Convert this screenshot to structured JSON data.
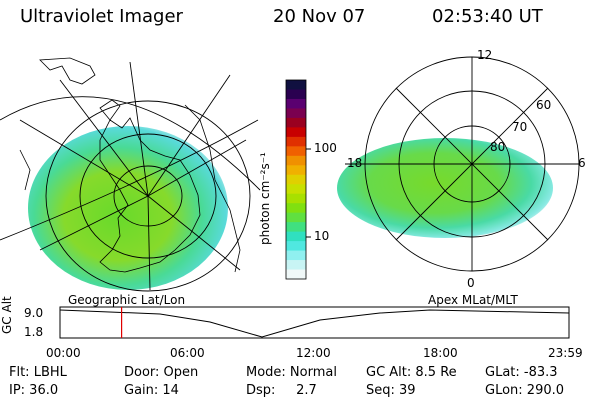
{
  "header": {
    "instrument": "Ultraviolet Imager",
    "date": "20 Nov 07",
    "time": "02:53:40 UT"
  },
  "colorbar": {
    "label": "photon cm⁻²s⁻¹",
    "ticks": [
      "100",
      "10"
    ],
    "colors": [
      "#101040",
      "#2a0050",
      "#5a0070",
      "#7a0050",
      "#9a0020",
      "#c80000",
      "#e03000",
      "#f06000",
      "#f09000",
      "#f0b000",
      "#e0d000",
      "#c8e000",
      "#a8e000",
      "#80e010",
      "#60e040",
      "#40e080",
      "#30e0c0",
      "#50e8e0",
      "#90f0f0",
      "#c8f4f4",
      "#f0f8f8"
    ]
  },
  "maps": {
    "geo_label": "Geographic Lat/Lon",
    "apex_label": "Apex MLat/MLT",
    "polar_labels": {
      "top": "12",
      "left": "18",
      "right": "6",
      "bottom": "0"
    },
    "lat_labels": [
      "60",
      "70",
      "80"
    ]
  },
  "timeline": {
    "ylabel": "GC Alt",
    "yticks": [
      "9.0",
      "1.8"
    ],
    "xticks": [
      "00:00",
      "06:00",
      "12:00",
      "18:00",
      "23:59"
    ],
    "current_time_fraction": 0.121
  },
  "info": {
    "row1": [
      {
        "key": "Flt: LBHL"
      },
      {
        "key": "Door: Open"
      },
      {
        "key": "Mode: Normal"
      },
      {
        "key": "GC Alt: 8.5 Re"
      },
      {
        "key": "GLat: -83.3"
      }
    ],
    "row2": [
      {
        "key": "IP: 36.0"
      },
      {
        "key": "Gain: 14"
      },
      {
        "key": "Dsp:     2.7"
      },
      {
        "key": "Seq: 39"
      },
      {
        "key": "GLon: 290.0"
      }
    ]
  }
}
